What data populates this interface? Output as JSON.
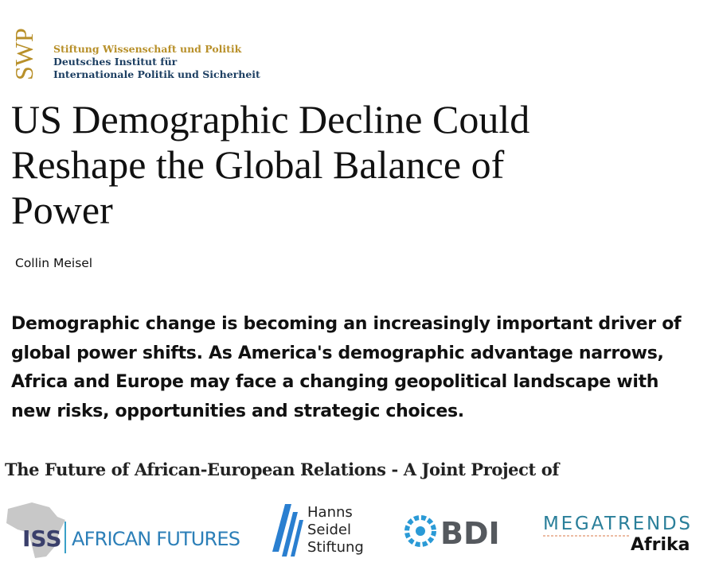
{
  "header": {
    "logo_mark": "SWP",
    "logo_lines": [
      "Stiftung Wissenschaft und Politik",
      "Deutsches Institut für",
      "Internationale Politik und Sicherheit"
    ]
  },
  "article": {
    "title_lines": [
      "US Demographic Decline Could",
      "Reshape the Global Balance of",
      "Power"
    ],
    "author": "Collin Meisel",
    "summary_lines": [
      "Demographic change is becoming an increasingly important driver of",
      "global power shifts. As America's demographic advantage narrows,",
      "Africa and Europe may face a changing geopolitical landscape with",
      "new risks, opportunities and strategic choices."
    ]
  },
  "project": {
    "heading": "The Future of African-European Relations - A Joint Project of",
    "partners": {
      "iss": {
        "mark": "ISS",
        "name": "AFRICAN FUTURES"
      },
      "hss": {
        "lines": [
          "Hanns",
          "Seidel",
          "Stiftung"
        ]
      },
      "bdi": {
        "name": "BDI"
      },
      "megatrends": {
        "top": "MEGATRENDS",
        "bottom": "Afrika"
      }
    }
  }
}
